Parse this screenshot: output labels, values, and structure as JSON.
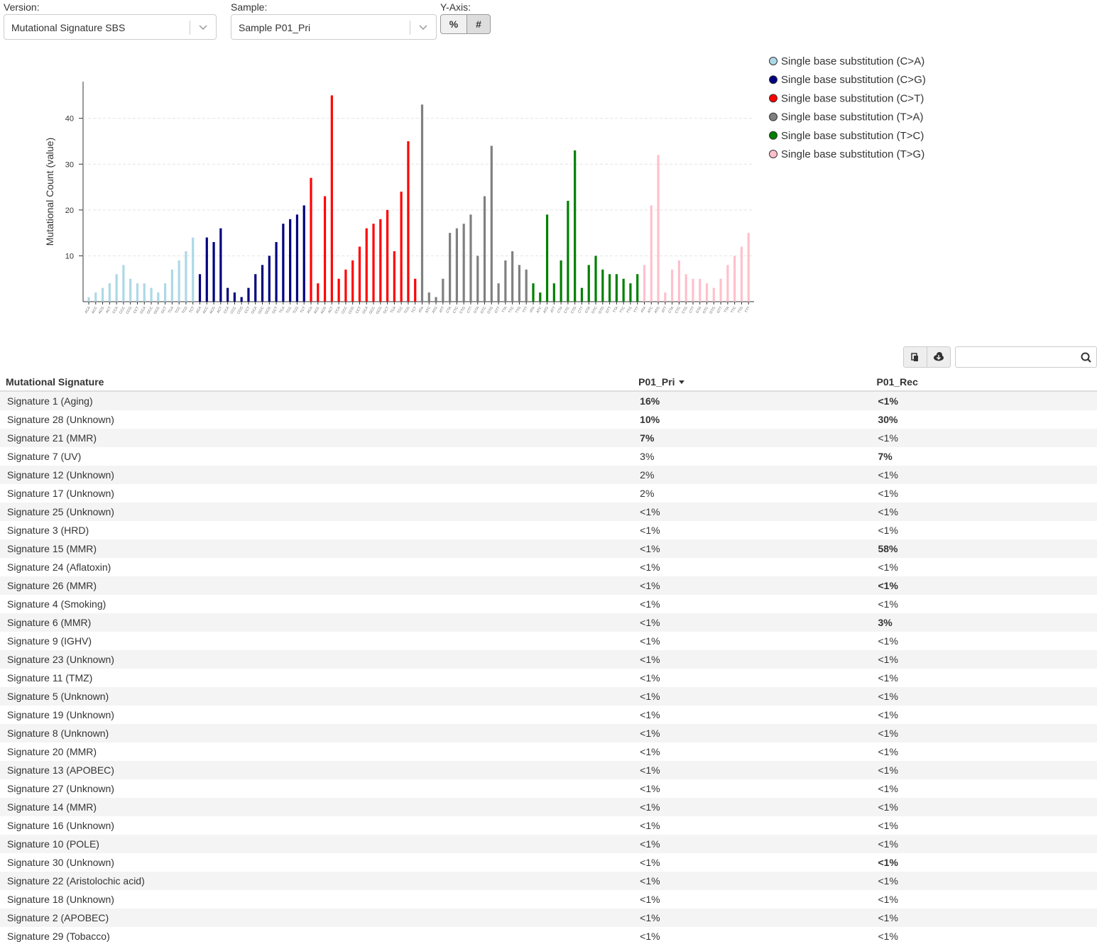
{
  "controls": {
    "version_label": "Version:",
    "version_value": "Mutational Signature SBS",
    "sample_label": "Sample:",
    "sample_value": "Sample P01_Pri",
    "yaxis_label": "Y-Axis:",
    "yaxis_buttons": [
      "%",
      "#"
    ]
  },
  "chart_data": {
    "type": "bar",
    "y_label": "Mutational Count (value)",
    "ylim": [
      0,
      48
    ],
    "yticks": [
      10,
      20,
      30,
      40
    ],
    "grid": true,
    "series": [
      {
        "name": "Single base substitution (C>A)",
        "color": "#add8e6",
        "categories": [
          "ACA",
          "ACC",
          "ACG",
          "ACT",
          "CCA",
          "CCC",
          "CCG",
          "CCT",
          "GCA",
          "GCC",
          "GCG",
          "GCT",
          "TCA",
          "TCC",
          "TCG",
          "TCT"
        ],
        "values": [
          1,
          2,
          3,
          4,
          6,
          8,
          5,
          4,
          4,
          3,
          2,
          4,
          7,
          9,
          11,
          14
        ]
      },
      {
        "name": "Single base substitution (C>G)",
        "color": "#000080",
        "categories": [
          "ACA",
          "ACC",
          "ACG",
          "ACT",
          "CCA",
          "CCC",
          "CCG",
          "CCT",
          "GCA",
          "GCC",
          "GCG",
          "GCT",
          "TCA",
          "TCC",
          "TCG",
          "TCT"
        ],
        "values": [
          6,
          14,
          13,
          16,
          3,
          2,
          1,
          3,
          6,
          8,
          10,
          13,
          17,
          18,
          19,
          21
        ]
      },
      {
        "name": "Single base substitution (C>T)",
        "color": "#ff0000",
        "categories": [
          "ACA",
          "ACC",
          "ACG",
          "ACT",
          "CCA",
          "CCC",
          "CCG",
          "CCT",
          "GCA",
          "GCC",
          "GCG",
          "GCT",
          "TCA",
          "TCC",
          "TCG",
          "TCT"
        ],
        "values": [
          27,
          4,
          23,
          45,
          5,
          7,
          9,
          12,
          16,
          17,
          18,
          20,
          11,
          24,
          35,
          5
        ]
      },
      {
        "name": "Single base substitution (T>A)",
        "color": "#808080",
        "categories": [
          "ATA",
          "ATC",
          "ATG",
          "ATT",
          "CTA",
          "CTC",
          "CTG",
          "CTT",
          "GTA",
          "GTC",
          "GTG",
          "GTT",
          "TTA",
          "TTC",
          "TTG",
          "TTT"
        ],
        "values": [
          43,
          2,
          1,
          5,
          15,
          16,
          17,
          19,
          10,
          23,
          34,
          4,
          9,
          11,
          8,
          7
        ]
      },
      {
        "name": "Single base substitution (T>C)",
        "color": "#008000",
        "categories": [
          "ATA",
          "ATC",
          "ATG",
          "ATT",
          "CTA",
          "CTC",
          "CTG",
          "CTT",
          "GTA",
          "GTC",
          "GTG",
          "GTT",
          "TTA",
          "TTC",
          "TTG",
          "TTT"
        ],
        "values": [
          4,
          2,
          19,
          4,
          9,
          22,
          33,
          3,
          8,
          10,
          7,
          6,
          6,
          5,
          4,
          6
        ]
      },
      {
        "name": "Single base substitution (T>G)",
        "color": "#ffc0cb",
        "categories": [
          "ATA",
          "ATC",
          "ATG",
          "ATT",
          "CTA",
          "CTC",
          "CTG",
          "CTT",
          "GTA",
          "GTC",
          "GTG",
          "GTT",
          "TTA",
          "TTC",
          "TTG",
          "TTT"
        ],
        "values": [
          8,
          21,
          32,
          2,
          7,
          9,
          6,
          5,
          5,
          4,
          3,
          5,
          8,
          10,
          12,
          15
        ]
      }
    ]
  },
  "table": {
    "headers": [
      "Mutational Signature",
      "P01_Pri",
      "P01_Rec"
    ],
    "rows": [
      [
        "Signature 1 (Aging)",
        "16%",
        "<1%"
      ],
      [
        "Signature 28 (Unknown)",
        "10%",
        "30%"
      ],
      [
        "Signature 21 (MMR)",
        "7%",
        "<1%"
      ],
      [
        "Signature 7 (UV)",
        "3%",
        "7%"
      ],
      [
        "Signature 12 (Unknown)",
        "2%",
        "<1%"
      ],
      [
        "Signature 17 (Unknown)",
        "2%",
        "<1%"
      ],
      [
        "Signature 25 (Unknown)",
        "<1%",
        "<1%"
      ],
      [
        "Signature 3 (HRD)",
        "<1%",
        "<1%"
      ],
      [
        "Signature 15 (MMR)",
        "<1%",
        "58%"
      ],
      [
        "Signature 24 (Aflatoxin)",
        "<1%",
        "<1%"
      ],
      [
        "Signature 26 (MMR)",
        "<1%",
        "<1%"
      ],
      [
        "Signature 4 (Smoking)",
        "<1%",
        "<1%"
      ],
      [
        "Signature 6 (MMR)",
        "<1%",
        "3%"
      ],
      [
        "Signature 9 (IGHV)",
        "<1%",
        "<1%"
      ],
      [
        "Signature 23 (Unknown)",
        "<1%",
        "<1%"
      ],
      [
        "Signature 11 (TMZ)",
        "<1%",
        "<1%"
      ],
      [
        "Signature 5 (Unknown)",
        "<1%",
        "<1%"
      ],
      [
        "Signature 19 (Unknown)",
        "<1%",
        "<1%"
      ],
      [
        "Signature 8 (Unknown)",
        "<1%",
        "<1%"
      ],
      [
        "Signature 20 (MMR)",
        "<1%",
        "<1%"
      ],
      [
        "Signature 13 (APOBEC)",
        "<1%",
        "<1%"
      ],
      [
        "Signature 27 (Unknown)",
        "<1%",
        "<1%"
      ],
      [
        "Signature 14 (MMR)",
        "<1%",
        "<1%"
      ],
      [
        "Signature 16 (Unknown)",
        "<1%",
        "<1%"
      ],
      [
        "Signature 10 (POLE)",
        "<1%",
        "<1%"
      ],
      [
        "Signature 30 (Unknown)",
        "<1%",
        "<1%"
      ],
      [
        "Signature 22 (Aristolochic acid)",
        "<1%",
        "<1%"
      ],
      [
        "Signature 18 (Unknown)",
        "<1%",
        "<1%"
      ],
      [
        "Signature 2 (APOBEC)",
        "<1%",
        "<1%"
      ],
      [
        "Signature 29 (Tobacco)",
        "<1%",
        "<1%"
      ]
    ],
    "bold": [
      [
        true,
        true
      ],
      [
        true,
        true
      ],
      [
        true,
        false
      ],
      [
        false,
        true
      ],
      [
        false,
        false
      ],
      [
        false,
        false
      ],
      [
        false,
        false
      ],
      [
        false,
        false
      ],
      [
        false,
        true
      ],
      [
        false,
        false
      ],
      [
        false,
        true
      ],
      [
        false,
        false
      ],
      [
        false,
        true
      ],
      [
        false,
        false
      ],
      [
        false,
        false
      ],
      [
        false,
        false
      ],
      [
        false,
        false
      ],
      [
        false,
        false
      ],
      [
        false,
        false
      ],
      [
        false,
        false
      ],
      [
        false,
        false
      ],
      [
        false,
        false
      ],
      [
        false,
        false
      ],
      [
        false,
        false
      ],
      [
        false,
        false
      ],
      [
        false,
        true
      ],
      [
        false,
        false
      ],
      [
        false,
        false
      ],
      [
        false,
        false
      ],
      [
        false,
        false
      ]
    ]
  }
}
